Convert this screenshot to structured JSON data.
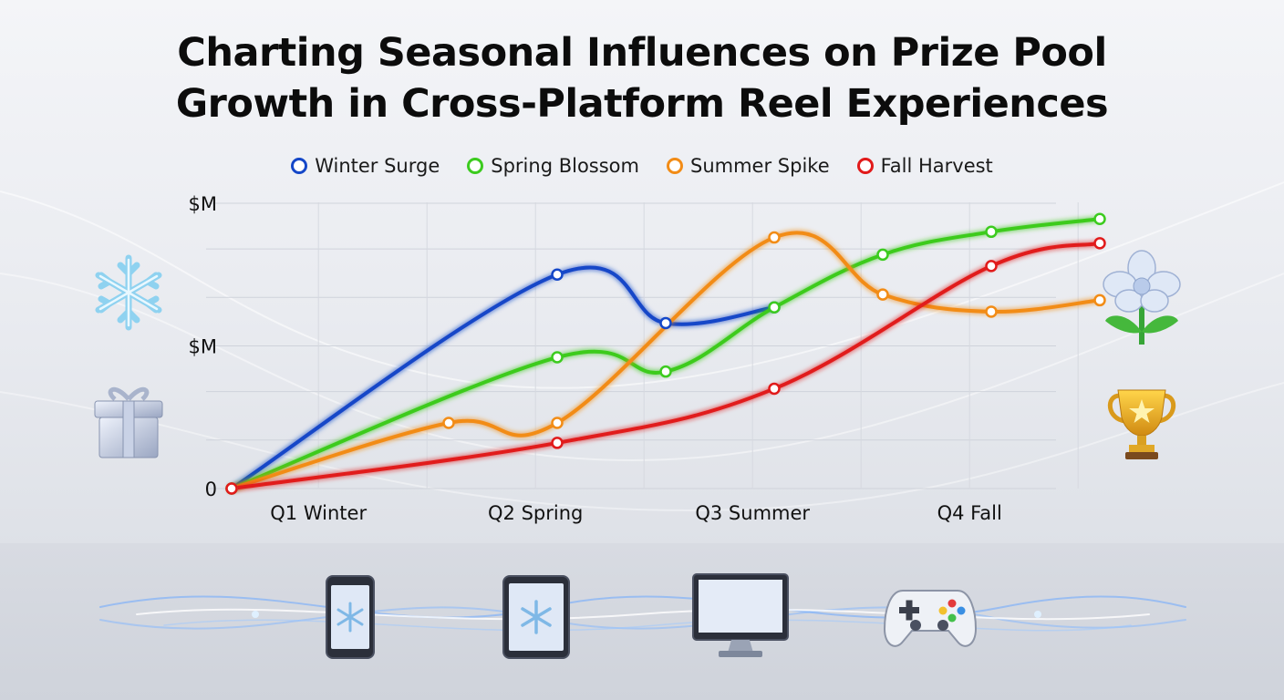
{
  "title": {
    "line1": "Charting Seasonal Influences on Prize Pool",
    "line2": "Growth in Cross-Platform Reel Experiences"
  },
  "colors": {
    "winter": "#1447c8",
    "spring": "#3ccb1f",
    "summer": "#f28c16",
    "fall": "#e11a1a"
  },
  "icons": {
    "left_top": "snowflake-icon",
    "left_bottom": "gift-box-icon",
    "right_top": "flower-icon",
    "right_bottom": "trophy-icon",
    "devices": [
      "smartphone-icon",
      "tablet-icon",
      "desktop-monitor-icon",
      "gamepad-icon"
    ]
  },
  "chart_data": {
    "type": "line",
    "title": "Charting Seasonal Influences on Prize Pool Growth in Cross-Platform Reel Experiences",
    "xlabel": "",
    "ylabel": "",
    "categories": [
      "Q1 Winter",
      "Q2 Spring",
      "Q3 Summer",
      "Q4 Fall"
    ],
    "y_tick_labels": [
      "0",
      "$M",
      "$M"
    ],
    "ylim": [
      0,
      10
    ],
    "grid": true,
    "legend_position": "top",
    "series": [
      {
        "name": "Winter Surge",
        "color": "#1447c8",
        "x": [
          0.0,
          1.5,
          2.0,
          2.5
        ],
        "y": [
          0.0,
          7.5,
          5.8,
          6.35
        ]
      },
      {
        "name": "Spring Blossom",
        "color": "#3ccb1f",
        "x": [
          0.0,
          1.5,
          2.0,
          2.5,
          3.0,
          3.5,
          4.0
        ],
        "y": [
          0.0,
          4.6,
          4.1,
          6.35,
          8.2,
          9.0,
          9.45
        ]
      },
      {
        "name": "Summer Spike",
        "color": "#f28c16",
        "x": [
          0.0,
          1.0,
          1.5,
          2.5,
          3.0,
          3.5,
          4.0
        ],
        "y": [
          0.0,
          2.3,
          2.3,
          8.8,
          6.8,
          6.2,
          6.6
        ]
      },
      {
        "name": "Fall Harvest",
        "color": "#e11a1a",
        "x": [
          0.0,
          1.5,
          2.5,
          3.5,
          4.0
        ],
        "y": [
          0.0,
          1.6,
          3.5,
          7.8,
          8.6
        ]
      }
    ]
  }
}
